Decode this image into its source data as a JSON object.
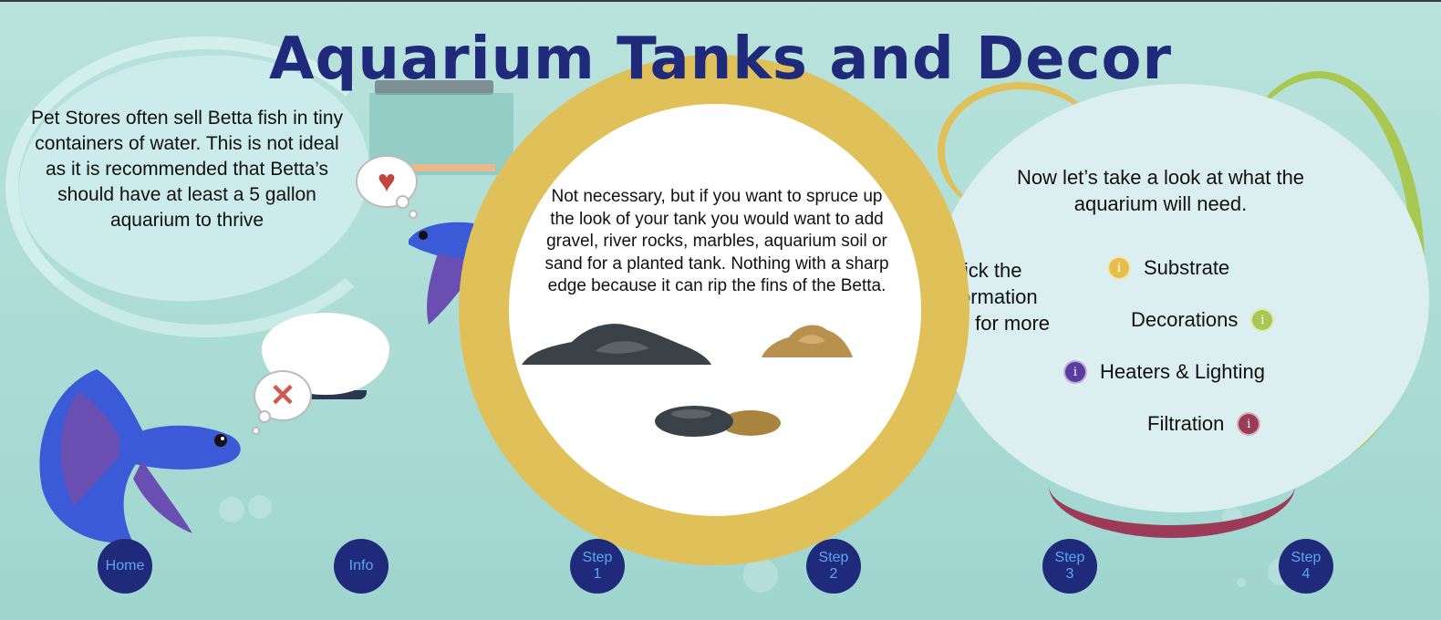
{
  "title": "Aquarium Tanks and Decor",
  "intro_text": "Pet Stores often sell Betta fish in tiny containers of water. This is not ideal as it is recommended that Betta’s should have at least a 5 gallon aquarium to thrive",
  "step_text": "Not necessary, but if you want to spruce up the look of your tank you would want to add gravel, river rocks, marbles, aquarium soil or sand for a planted tank. Nothing with a sharp edge because it can rip the fins of the Betta.",
  "look_text": "Now let’s take a look at what the aquarium will need.",
  "click_text": "lick the\normation\ns for more",
  "info_items": [
    {
      "label": "Substrate",
      "color": "#e6bf4a"
    },
    {
      "label": "Decorations",
      "color": "#a9c852"
    },
    {
      "label": "Heaters & Lighting",
      "color": "#5b3b9e"
    },
    {
      "label": "Filtration",
      "color": "#9b3b58"
    }
  ],
  "info_icon_glyph": "i",
  "thought_icons": {
    "heart": "♥",
    "x": "✕"
  },
  "nav": [
    {
      "label": "Home"
    },
    {
      "label": "Info"
    },
    {
      "label": "Step\n1"
    },
    {
      "label": "Step\n2"
    },
    {
      "label": "Step\n3"
    },
    {
      "label": "Step\n4"
    }
  ],
  "colors": {
    "title": "#1f2b7a",
    "nav_bg": "#1f2b7a",
    "nav_text": "#5aa7ef",
    "ring": "#e0c159",
    "fish_blue": "#3a5ad8",
    "fish_purple": "#6a4fb3"
  }
}
